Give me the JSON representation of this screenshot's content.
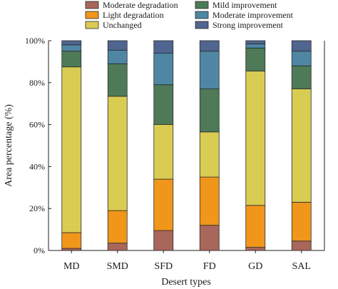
{
  "chart_data": {
    "type": "bar",
    "stacked": true,
    "xlabel": "Desert types",
    "ylabel": "Area percentage (%)",
    "ylim": [
      0,
      100
    ],
    "yticks": [
      "0%",
      "20%",
      "40%",
      "60%",
      "80%",
      "100%"
    ],
    "grid": false,
    "legend_position": "top",
    "categories": [
      "MD",
      "SMD",
      "SFD",
      "FD",
      "GD",
      "SAL"
    ],
    "series": [
      {
        "name": "Moderate degradation",
        "color": "#a9665a",
        "values": [
          1,
          3.5,
          9.5,
          12,
          1.5,
          4.5
        ]
      },
      {
        "name": "Light degradation",
        "color": "#f0961a",
        "values": [
          7.5,
          15.5,
          24.5,
          23,
          20,
          18.5
        ]
      },
      {
        "name": "Unchanged",
        "color": "#d9cc52",
        "values": [
          79,
          54.5,
          26,
          21.5,
          64,
          54
        ]
      },
      {
        "name": "Mild improvement",
        "color": "#4e7a58",
        "values": [
          7.5,
          15.5,
          19,
          20.5,
          11,
          11
        ]
      },
      {
        "name": "Moderate improvement",
        "color": "#4f86a4",
        "values": [
          3,
          6.5,
          15,
          18,
          2,
          7
        ]
      },
      {
        "name": "Strong improvement",
        "color": "#50658f",
        "values": [
          2,
          4.5,
          6,
          5,
          1.5,
          5
        ]
      }
    ]
  }
}
